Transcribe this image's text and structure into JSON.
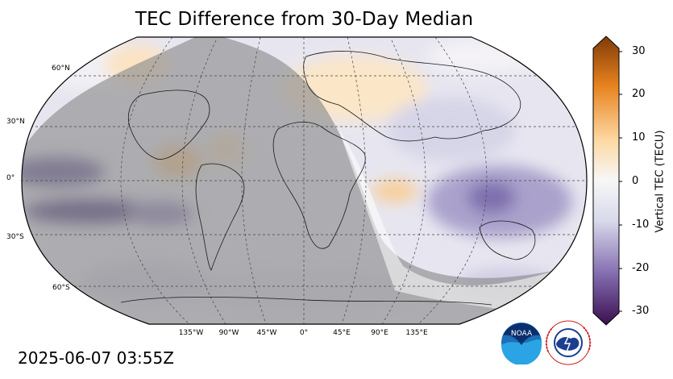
{
  "title": "TEC Difference from 30-Day Median",
  "timestamp": "2025-06-07 03:55Z",
  "lat_labels": [
    "60°N",
    "30°N",
    "0°",
    "30°S",
    "60°S"
  ],
  "lon_labels": [
    "135°W",
    "90°W",
    "45°W",
    "0°",
    "45°E",
    "90°E",
    "135°E"
  ],
  "colorbar": {
    "label": "Vertical TEC (TECU)",
    "ticks": [
      "30",
      "20",
      "10",
      "0",
      "-10",
      "-20",
      "-30"
    ],
    "min": -30,
    "max": 30,
    "colors": [
      "#3b0f4f",
      "#8069ad",
      "#d8d9ea",
      "#f7f7f7",
      "#fdd9a3",
      "#e7821d",
      "#7f3b08"
    ]
  },
  "logos": {
    "noaa": {
      "icon": "noaa-logo",
      "text": "NOAA"
    },
    "nws": {
      "icon": "nws-logo",
      "text": "NATIONAL WEATHER SERVICE"
    }
  }
}
